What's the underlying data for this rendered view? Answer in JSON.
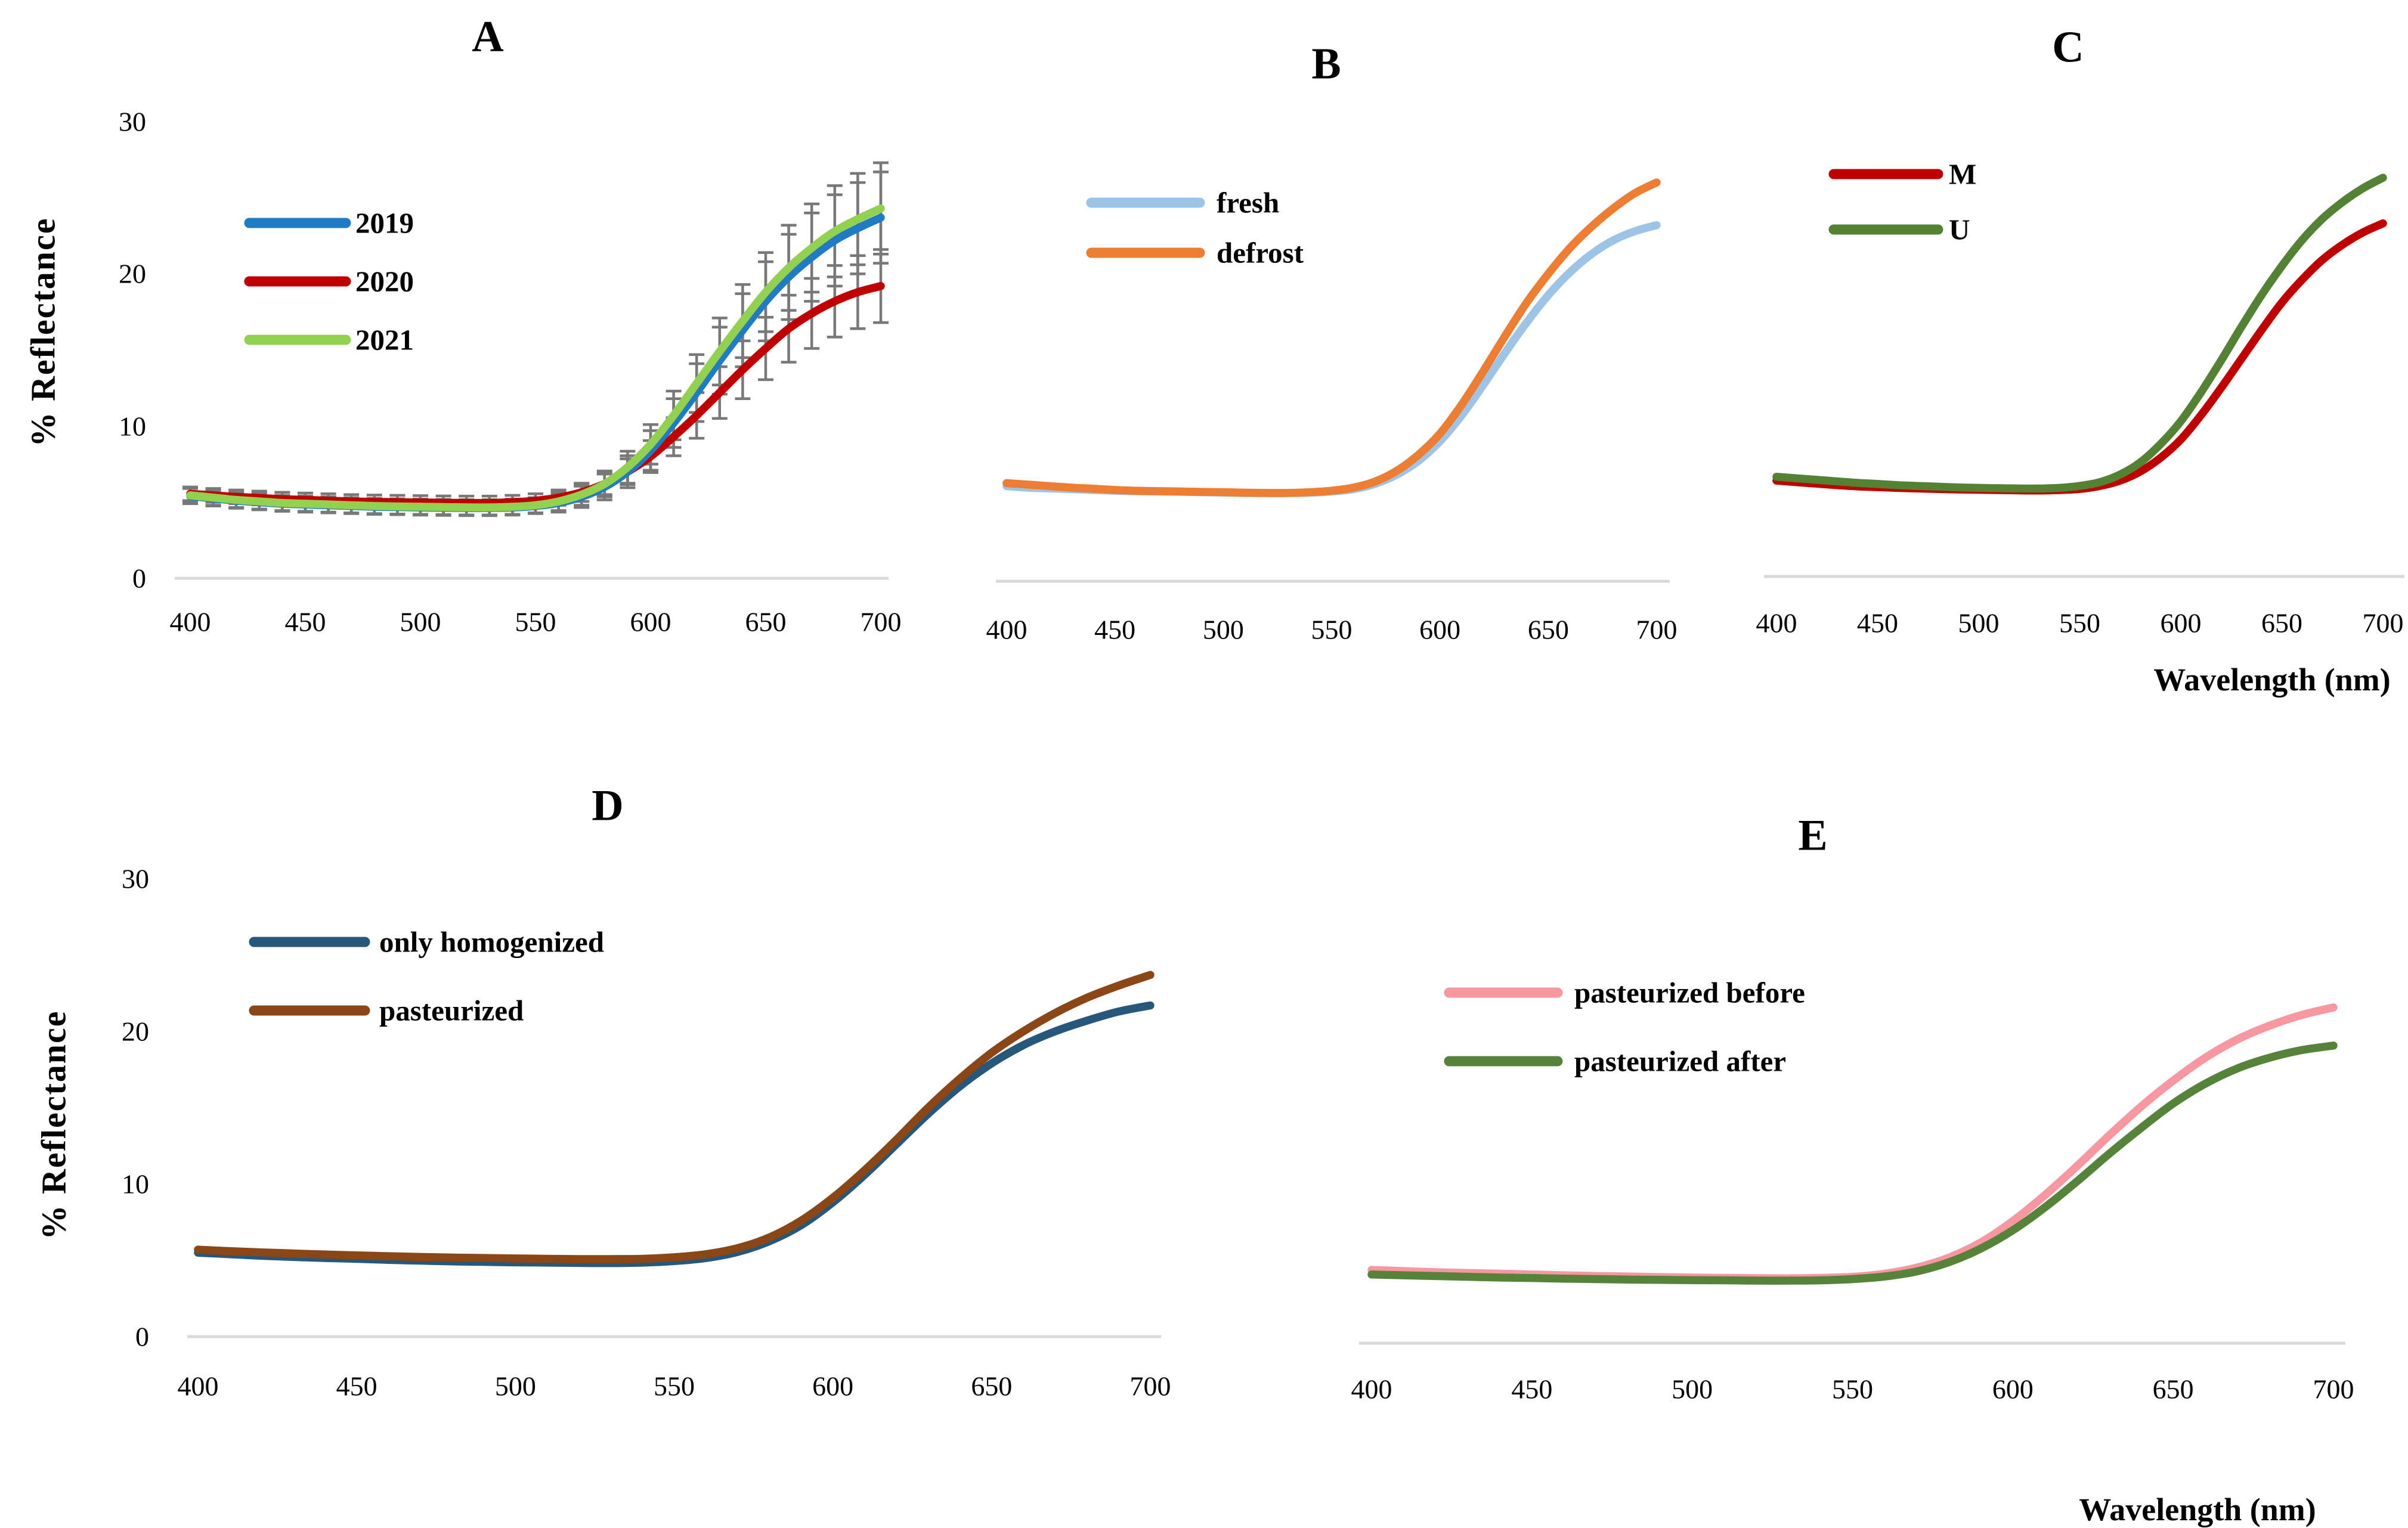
{
  "figure": {
    "y_axis_title": "% Reflectance",
    "x_axis_title": "Wavelength (nm)",
    "axis_line_color": "#d9d9d9",
    "error_bar_color": "#787878",
    "text_color": "#000000"
  },
  "chart_data": [
    {
      "id": "A",
      "type": "line",
      "title": "A",
      "xlabel": "",
      "ylabel": "% Reflectance",
      "x": [
        400,
        410,
        420,
        430,
        440,
        450,
        460,
        470,
        480,
        490,
        500,
        510,
        520,
        530,
        540,
        550,
        560,
        570,
        580,
        590,
        600,
        610,
        620,
        630,
        640,
        650,
        660,
        670,
        680,
        690,
        700
      ],
      "x_ticks": [
        400,
        450,
        500,
        550,
        600,
        650,
        700
      ],
      "y_ticks": [
        0,
        10,
        20,
        30
      ],
      "ylim": [
        0,
        30
      ],
      "grid": false,
      "legend_position": "upper-left",
      "error_bars": true,
      "series": [
        {
          "name": "2019",
          "color": "#1e7bc4",
          "values": [
            5.4,
            5.25,
            5.1,
            5.0,
            4.9,
            4.85,
            4.8,
            4.75,
            4.7,
            4.68,
            4.65,
            4.63,
            4.62,
            4.62,
            4.65,
            4.75,
            4.95,
            5.35,
            6.0,
            7.0,
            8.4,
            10.2,
            12.2,
            14.3,
            16.3,
            18.2,
            19.8,
            21.1,
            22.2,
            23.0,
            23.7
          ],
          "err": [
            0.5,
            0.5,
            0.5,
            0.5,
            0.5,
            0.5,
            0.5,
            0.5,
            0.5,
            0.5,
            0.5,
            0.5,
            0.5,
            0.5,
            0.5,
            0.5,
            0.6,
            0.7,
            0.85,
            1.05,
            1.3,
            1.6,
            1.9,
            2.2,
            2.4,
            2.6,
            2.8,
            2.9,
            3.0,
            3.0,
            3.0
          ]
        },
        {
          "name": "2020",
          "color": "#c00000",
          "values": [
            5.55,
            5.45,
            5.35,
            5.28,
            5.2,
            5.15,
            5.1,
            5.05,
            5.02,
            5.0,
            4.98,
            4.96,
            4.95,
            4.95,
            5.0,
            5.1,
            5.3,
            5.65,
            6.2,
            7.0,
            8.0,
            9.3,
            10.7,
            12.2,
            13.7,
            15.1,
            16.4,
            17.4,
            18.2,
            18.8,
            19.2
          ],
          "err": [
            0.45,
            0.45,
            0.45,
            0.45,
            0.45,
            0.45,
            0.45,
            0.45,
            0.45,
            0.45,
            0.45,
            0.45,
            0.45,
            0.45,
            0.45,
            0.45,
            0.5,
            0.6,
            0.7,
            0.85,
            1.05,
            1.25,
            1.5,
            1.7,
            1.9,
            2.05,
            2.2,
            2.3,
            2.35,
            2.4,
            2.4
          ]
        },
        {
          "name": "2021",
          "color": "#92d050",
          "values": [
            5.45,
            5.3,
            5.15,
            5.05,
            4.95,
            4.9,
            4.85,
            4.8,
            4.75,
            4.72,
            4.7,
            4.68,
            4.66,
            4.66,
            4.7,
            4.8,
            5.05,
            5.5,
            6.2,
            7.3,
            8.8,
            10.7,
            12.8,
            14.9,
            16.9,
            18.8,
            20.4,
            21.7,
            22.8,
            23.6,
            24.3
          ],
          "err": [
            0.5,
            0.5,
            0.5,
            0.5,
            0.5,
            0.5,
            0.5,
            0.5,
            0.5,
            0.5,
            0.5,
            0.5,
            0.5,
            0.5,
            0.5,
            0.5,
            0.6,
            0.7,
            0.85,
            1.05,
            1.3,
            1.6,
            1.9,
            2.2,
            2.4,
            2.6,
            2.8,
            2.9,
            3.0,
            3.0,
            3.0
          ]
        }
      ]
    },
    {
      "id": "B",
      "type": "line",
      "title": "B",
      "xlabel": "",
      "ylabel": "",
      "x": [
        400,
        410,
        420,
        430,
        440,
        450,
        460,
        470,
        480,
        490,
        500,
        510,
        520,
        530,
        540,
        550,
        560,
        570,
        580,
        590,
        600,
        610,
        620,
        630,
        640,
        650,
        660,
        670,
        680,
        690,
        700
      ],
      "x_ticks": [
        400,
        450,
        500,
        550,
        600,
        650,
        700
      ],
      "y_ticks": [],
      "ylim": [
        0,
        30
      ],
      "grid": false,
      "legend_position": "upper-left",
      "error_bars": false,
      "series": [
        {
          "name": "fresh",
          "color": "#9dc3e6",
          "values": [
            6.25,
            6.15,
            6.1,
            6.05,
            6.0,
            5.95,
            5.92,
            5.9,
            5.88,
            5.85,
            5.83,
            5.8,
            5.8,
            5.8,
            5.82,
            5.9,
            6.05,
            6.4,
            7.0,
            7.9,
            9.2,
            10.9,
            12.9,
            15.0,
            17.0,
            18.8,
            20.3,
            21.5,
            22.4,
            23.0,
            23.4
          ]
        },
        {
          "name": "defrost",
          "color": "#ed7d31",
          "values": [
            6.45,
            6.35,
            6.25,
            6.15,
            6.08,
            6.0,
            5.95,
            5.92,
            5.9,
            5.87,
            5.85,
            5.82,
            5.8,
            5.8,
            5.85,
            5.95,
            6.15,
            6.55,
            7.25,
            8.3,
            9.7,
            11.6,
            13.8,
            16.1,
            18.3,
            20.2,
            21.9,
            23.3,
            24.5,
            25.5,
            26.2
          ]
        }
      ]
    },
    {
      "id": "C",
      "type": "line",
      "title": "C",
      "xlabel": "Wavelength (nm)",
      "ylabel": "",
      "x": [
        400,
        410,
        420,
        430,
        440,
        450,
        460,
        470,
        480,
        490,
        500,
        510,
        520,
        530,
        540,
        550,
        560,
        570,
        580,
        590,
        600,
        610,
        620,
        630,
        640,
        650,
        660,
        670,
        680,
        690,
        700
      ],
      "x_ticks": [
        400,
        450,
        500,
        550,
        600,
        650,
        700
      ],
      "y_ticks": [],
      "ylim": [
        0,
        30
      ],
      "grid": false,
      "legend_position": "upper-left",
      "error_bars": false,
      "series": [
        {
          "name": "M",
          "color": "#c00000",
          "values": [
            6.3,
            6.2,
            6.1,
            6.0,
            5.92,
            5.87,
            5.82,
            5.78,
            5.75,
            5.72,
            5.7,
            5.68,
            5.66,
            5.65,
            5.68,
            5.75,
            5.95,
            6.3,
            6.9,
            7.8,
            9.0,
            10.6,
            12.4,
            14.3,
            16.2,
            18.0,
            19.5,
            20.8,
            21.8,
            22.6,
            23.2
          ]
        },
        {
          "name": "U",
          "color": "#548235",
          "values": [
            6.55,
            6.45,
            6.35,
            6.25,
            6.15,
            6.08,
            6.0,
            5.95,
            5.9,
            5.85,
            5.82,
            5.8,
            5.78,
            5.78,
            5.82,
            5.95,
            6.2,
            6.7,
            7.5,
            8.7,
            10.2,
            12.1,
            14.2,
            16.4,
            18.5,
            20.4,
            22.1,
            23.5,
            24.6,
            25.5,
            26.2
          ]
        }
      ]
    },
    {
      "id": "D",
      "type": "line",
      "title": "D",
      "xlabel": "",
      "ylabel": "% Reflectance",
      "x": [
        400,
        410,
        420,
        430,
        440,
        450,
        460,
        470,
        480,
        490,
        500,
        510,
        520,
        530,
        540,
        550,
        560,
        570,
        580,
        590,
        600,
        610,
        620,
        630,
        640,
        650,
        660,
        670,
        680,
        690,
        700
      ],
      "x_ticks": [
        400,
        450,
        500,
        550,
        600,
        650,
        700
      ],
      "y_ticks": [
        0,
        10,
        20,
        30
      ],
      "ylim": [
        0,
        30
      ],
      "grid": false,
      "legend_position": "upper-left",
      "error_bars": false,
      "series": [
        {
          "name": "only homogenized",
          "color": "#26587c",
          "values": [
            5.5,
            5.4,
            5.3,
            5.22,
            5.15,
            5.1,
            5.03,
            4.98,
            4.93,
            4.9,
            4.87,
            4.85,
            4.83,
            4.82,
            4.85,
            4.95,
            5.15,
            5.55,
            6.25,
            7.3,
            8.8,
            10.6,
            12.6,
            14.6,
            16.4,
            17.9,
            19.1,
            20.0,
            20.7,
            21.3,
            21.7
          ]
        },
        {
          "name": "pasteurized",
          "color": "#8a4715",
          "values": [
            5.7,
            5.6,
            5.52,
            5.45,
            5.38,
            5.32,
            5.27,
            5.22,
            5.18,
            5.15,
            5.12,
            5.1,
            5.08,
            5.08,
            5.1,
            5.2,
            5.4,
            5.8,
            6.5,
            7.6,
            9.1,
            10.9,
            12.9,
            15.0,
            16.9,
            18.6,
            20.0,
            21.2,
            22.2,
            23.0,
            23.7
          ]
        }
      ]
    },
    {
      "id": "E",
      "type": "line",
      "title": "E",
      "xlabel": "Wavelength (nm)",
      "ylabel": "",
      "x": [
        400,
        410,
        420,
        430,
        440,
        450,
        460,
        470,
        480,
        490,
        500,
        510,
        520,
        530,
        540,
        550,
        560,
        570,
        580,
        590,
        600,
        610,
        620,
        630,
        640,
        650,
        660,
        670,
        680,
        690,
        700
      ],
      "x_ticks": [
        400,
        450,
        500,
        550,
        600,
        650,
        700
      ],
      "y_ticks": [],
      "ylim": [
        0,
        30
      ],
      "grid": false,
      "legend_position": "upper-left",
      "error_bars": false,
      "series": [
        {
          "name": "pasteurized before",
          "color": "#f8979f",
          "values": [
            4.8,
            4.72,
            4.65,
            4.6,
            4.55,
            4.5,
            4.45,
            4.4,
            4.37,
            4.33,
            4.3,
            4.28,
            4.26,
            4.25,
            4.28,
            4.35,
            4.55,
            4.95,
            5.6,
            6.6,
            8.0,
            9.7,
            11.6,
            13.6,
            15.5,
            17.2,
            18.7,
            19.9,
            20.8,
            21.5,
            22.0
          ]
        },
        {
          "name": "pasteurized after",
          "color": "#56833a",
          "values": [
            4.5,
            4.45,
            4.4,
            4.35,
            4.3,
            4.27,
            4.23,
            4.2,
            4.17,
            4.15,
            4.13,
            4.12,
            4.1,
            4.1,
            4.12,
            4.2,
            4.37,
            4.7,
            5.3,
            6.2,
            7.4,
            8.9,
            10.6,
            12.4,
            14.1,
            15.7,
            17.0,
            18.0,
            18.7,
            19.2,
            19.5
          ]
        }
      ]
    }
  ]
}
